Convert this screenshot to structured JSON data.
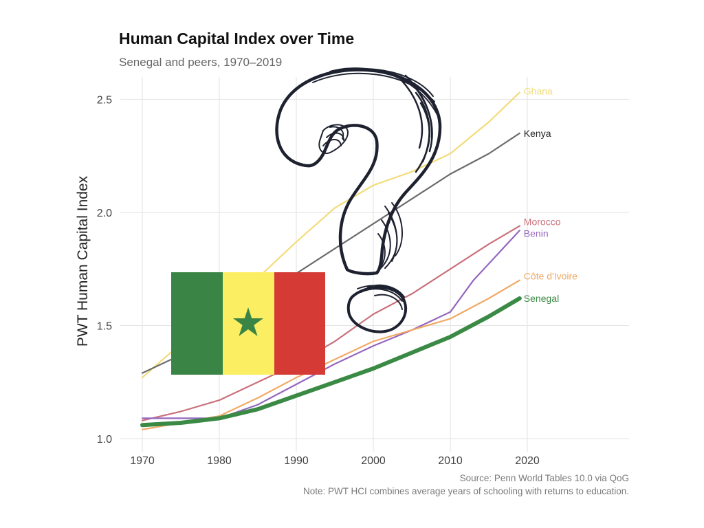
{
  "chart_data": {
    "type": "line",
    "title": "Human Capital Index over Time",
    "subtitle": "Senegal and peers, 1970–2019",
    "xlabel": "",
    "ylabel": "PWT Human Capital Index",
    "xlim": [
      1970,
      2029
    ],
    "ylim": [
      1.0,
      2.6
    ],
    "x_ticks": [
      1970,
      1980,
      1990,
      2000,
      2010,
      2020
    ],
    "y_ticks": [
      1.0,
      1.5,
      2.0,
      2.5
    ],
    "y_tick_labels": [
      "1.0",
      "1.5",
      "2.0",
      "2.5"
    ],
    "grid": true,
    "legend": "direct labels at line ends",
    "series": [
      {
        "name": "Ghana",
        "color": "#f2dc7a",
        "x": [
          1970,
          1975,
          1980,
          1985,
          1990,
          1995,
          2000,
          2005,
          2010,
          2015,
          2019
        ],
        "y": [
          1.27,
          1.42,
          1.56,
          1.71,
          1.87,
          2.02,
          2.12,
          2.18,
          2.26,
          2.4,
          2.53
        ]
      },
      {
        "name": "Kenya",
        "color": "#6b6b6b",
        "x": [
          1970,
          1975,
          1980,
          1985,
          1990,
          1995,
          2000,
          2005,
          2010,
          2015,
          2019
        ],
        "y": [
          1.29,
          1.37,
          1.48,
          1.61,
          1.73,
          1.84,
          1.95,
          2.06,
          2.17,
          2.26,
          2.35
        ]
      },
      {
        "name": "Morocco",
        "color": "#c9707a",
        "x": [
          1970,
          1975,
          1980,
          1985,
          1990,
          1995,
          2000,
          2005,
          2010,
          2015,
          2019
        ],
        "y": [
          1.08,
          1.12,
          1.17,
          1.25,
          1.33,
          1.43,
          1.55,
          1.64,
          1.75,
          1.86,
          1.94
        ]
      },
      {
        "name": "Benin",
        "color": "#9467bd",
        "x": [
          1970,
          1975,
          1980,
          1985,
          1990,
          1995,
          2000,
          2005,
          2010,
          2013,
          2019
        ],
        "y": [
          1.09,
          1.09,
          1.09,
          1.15,
          1.24,
          1.33,
          1.41,
          1.48,
          1.56,
          1.7,
          1.92
        ]
      },
      {
        "name": "Côte d'Ivoire",
        "color": "#f0a965",
        "x": [
          1970,
          1975,
          1980,
          1985,
          1990,
          1995,
          2000,
          2005,
          2010,
          2015,
          2019
        ],
        "y": [
          1.04,
          1.07,
          1.1,
          1.18,
          1.27,
          1.35,
          1.43,
          1.48,
          1.53,
          1.62,
          1.7
        ]
      },
      {
        "name": "Senegal",
        "color": "#3a8a45",
        "x": [
          1970,
          1975,
          1980,
          1985,
          1990,
          1995,
          2000,
          2005,
          2010,
          2015,
          2019
        ],
        "y": [
          1.06,
          1.07,
          1.09,
          1.13,
          1.19,
          1.25,
          1.31,
          1.38,
          1.45,
          1.54,
          1.62
        ]
      }
    ],
    "caption_source": "Source: Penn World Tables 10.0 via QoG",
    "caption_note": "Note: PWT HCI combines average years of schooling with returns to education."
  },
  "overlays": {
    "flag": {
      "name": "senegal-flag",
      "colors": [
        "#3a8546",
        "#fcee62",
        "#d53a34"
      ],
      "star_color": "#3a8546"
    },
    "question_mark": {
      "icon": "question-mark-scribble-icon",
      "color": "#1e2230"
    }
  }
}
